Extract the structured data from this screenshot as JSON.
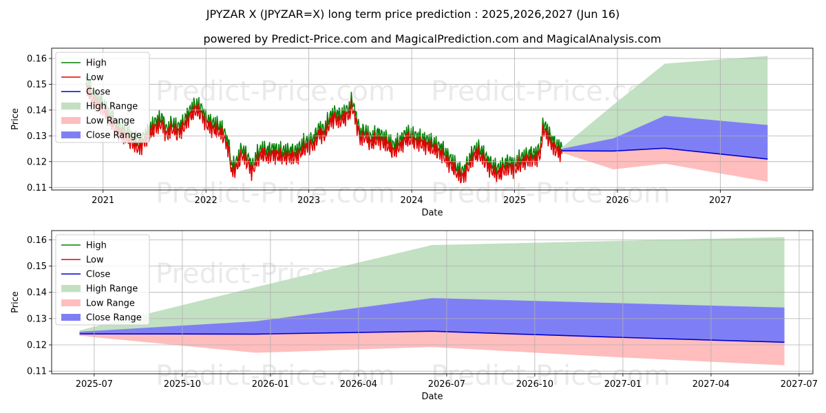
{
  "title": "JPYZAR X (JPYZAR=X) long term price prediction : 2025,2026,2027 (Jun 16)",
  "subtitle": "powered by Predict-Price.com and MagicalPrediction.com and MagicalAnalysis.com",
  "watermark": "Predict-Price.com",
  "colors": {
    "high": "#008000",
    "low": "#e00000",
    "close": "#0000cc",
    "high_range": "#c2e0c2",
    "low_range": "#ffbdbd",
    "close_range": "#7f7ff5",
    "grid": "#b0b0b0"
  },
  "legend": [
    "High",
    "Low",
    "Close",
    "High Range",
    "Low Range",
    "Close Range"
  ],
  "chart_data": [
    {
      "type": "line",
      "panel": "top",
      "xlabel": "Date",
      "ylabel": "Price",
      "x_ticks": [
        "2021",
        "2022",
        "2023",
        "2024",
        "2025",
        "2026",
        "2027"
      ],
      "x_tick_values": [
        2021.0,
        2022.0,
        2023.0,
        2024.0,
        2025.0,
        2026.0,
        2027.0
      ],
      "xlim": [
        2020.5,
        2027.9
      ],
      "ylim": [
        0.109,
        0.164
      ],
      "y_ticks": [
        0.11,
        0.12,
        0.13,
        0.14,
        0.15,
        0.16
      ],
      "y_tick_labels": [
        "0.11",
        "0.12",
        "0.13",
        "0.14",
        "0.15",
        "0.16"
      ],
      "history": {
        "x": [
          2020.83,
          2020.9,
          2020.97,
          2021.05,
          2021.12,
          2021.2,
          2021.27,
          2021.35,
          2021.4,
          2021.45,
          2021.5,
          2021.57,
          2021.62,
          2021.67,
          2021.72,
          2021.78,
          2021.83,
          2021.9,
          2021.95,
          2022.0,
          2022.05,
          2022.12,
          2022.17,
          2022.22,
          2022.25,
          2022.3,
          2022.35,
          2022.4,
          2022.45,
          2022.5,
          2022.55,
          2022.6,
          2022.65,
          2022.72,
          2022.8,
          2022.88,
          2022.95,
          2023.0,
          2023.05,
          2023.1,
          2023.15,
          2023.2,
          2023.25,
          2023.3,
          2023.35,
          2023.4,
          2023.42,
          2023.45,
          2023.5,
          2023.55,
          2023.6,
          2023.67,
          2023.75,
          2023.82,
          2023.88,
          2023.95,
          2024.02,
          2024.1,
          2024.17,
          2024.25,
          2024.3,
          2024.35,
          2024.4,
          2024.45,
          2024.5,
          2024.55,
          2024.6,
          2024.65,
          2024.7,
          2024.75,
          2024.8,
          2024.85,
          2024.9,
          2024.95,
          2025.0,
          2025.05,
          2025.1,
          2025.15,
          2025.2,
          2025.25,
          2025.28,
          2025.32,
          2025.37,
          2025.42,
          2025.46
        ],
        "close": [
          0.15,
          0.145,
          0.143,
          0.138,
          0.134,
          0.131,
          0.129,
          0.126,
          0.129,
          0.131,
          0.134,
          0.136,
          0.131,
          0.134,
          0.132,
          0.134,
          0.138,
          0.141,
          0.14,
          0.136,
          0.134,
          0.133,
          0.131,
          0.126,
          0.117,
          0.119,
          0.124,
          0.121,
          0.117,
          0.122,
          0.124,
          0.123,
          0.124,
          0.123,
          0.123,
          0.123,
          0.126,
          0.127,
          0.128,
          0.132,
          0.131,
          0.136,
          0.138,
          0.137,
          0.138,
          0.14,
          0.143,
          0.138,
          0.13,
          0.131,
          0.128,
          0.13,
          0.128,
          0.125,
          0.127,
          0.13,
          0.129,
          0.128,
          0.127,
          0.125,
          0.124,
          0.121,
          0.119,
          0.116,
          0.115,
          0.119,
          0.123,
          0.124,
          0.122,
          0.119,
          0.117,
          0.116,
          0.118,
          0.119,
          0.118,
          0.12,
          0.121,
          0.122,
          0.122,
          0.124,
          0.134,
          0.131,
          0.127,
          0.125,
          0.124
        ]
      },
      "forecast": {
        "x": [
          2025.46,
          2025.96,
          2026.46,
          2027.46
        ],
        "close": [
          0.1242,
          0.1241,
          0.1252,
          0.121
        ],
        "high_range_upper": [
          0.1255,
          0.142,
          0.158,
          0.161
        ],
        "close_range_upper": [
          0.125,
          0.129,
          0.1378,
          0.1342
        ],
        "low_range_lower": [
          0.1235,
          0.117,
          0.1192,
          0.1122
        ]
      }
    },
    {
      "type": "line",
      "panel": "bottom",
      "xlabel": "Date",
      "ylabel": "Price",
      "x_ticks": [
        "2025-07",
        "2025-10",
        "2026-01",
        "2026-04",
        "2026-07",
        "2026-10",
        "2027-01",
        "2027-04",
        "2027-07"
      ],
      "x_tick_values": [
        0.0,
        3.0,
        6.0,
        9.0,
        12.0,
        15.0,
        18.0,
        21.0,
        24.0
      ],
      "xlim": [
        -1.45,
        24.47
      ],
      "ylim": [
        0.109,
        0.1635
      ],
      "y_ticks": [
        0.11,
        0.12,
        0.13,
        0.14,
        0.15,
        0.16
      ],
      "y_tick_labels": [
        "0.11",
        "0.12",
        "0.13",
        "0.14",
        "0.15",
        "0.16"
      ],
      "x": [
        -0.5,
        5.5,
        11.5,
        17.5,
        23.5
      ],
      "close": [
        0.1242,
        0.1241,
        0.1252,
        0.123,
        0.121
      ],
      "high_range_upper": [
        0.1255,
        0.142,
        0.158,
        0.1595,
        0.161
      ],
      "close_range_upper": [
        0.125,
        0.129,
        0.1378,
        0.136,
        0.1342
      ],
      "low_range_lower": [
        0.1235,
        0.117,
        0.1192,
        0.1155,
        0.1122
      ]
    }
  ]
}
